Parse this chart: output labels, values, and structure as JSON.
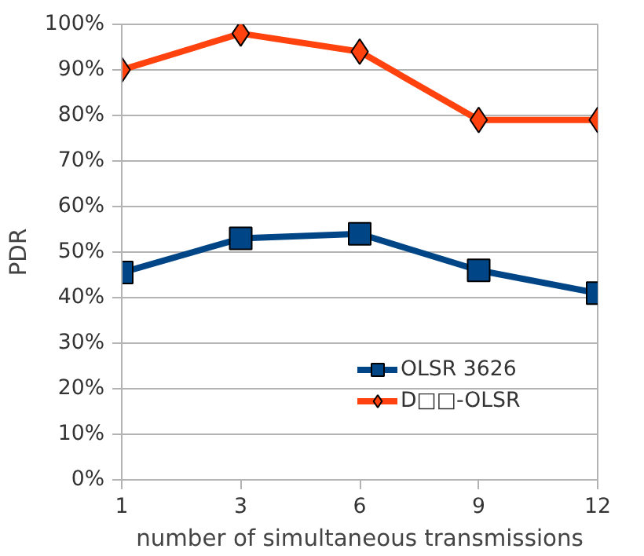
{
  "chart_data": {
    "type": "line",
    "xlabel": "number of simultaneous transmissions",
    "ylabel": "PDR",
    "categories": [
      "1",
      "3",
      "6",
      "9",
      "12"
    ],
    "series": [
      {
        "name": "OLSR 3626",
        "color": "#004586",
        "marker": "square",
        "values": [
          45.5,
          53,
          54,
          46,
          41
        ]
      },
      {
        "name": "D□□-OLSR",
        "color": "#ff420e",
        "marker": "diamond",
        "values": [
          90,
          98,
          94,
          79,
          79
        ]
      }
    ],
    "ylim": [
      0,
      100
    ],
    "yticks": [
      {
        "value": 0,
        "label": "0%"
      },
      {
        "value": 10,
        "label": "10%"
      },
      {
        "value": 20,
        "label": "20%"
      },
      {
        "value": 30,
        "label": "30%"
      },
      {
        "value": 40,
        "label": "40%"
      },
      {
        "value": 50,
        "label": "50%"
      },
      {
        "value": 60,
        "label": "60%"
      },
      {
        "value": 70,
        "label": "70%"
      },
      {
        "value": 80,
        "label": "80%"
      },
      {
        "value": 90,
        "label": "90%"
      },
      {
        "value": 100,
        "label": "100%"
      }
    ],
    "grid": "y",
    "legend": "right",
    "line_style": "solid"
  }
}
